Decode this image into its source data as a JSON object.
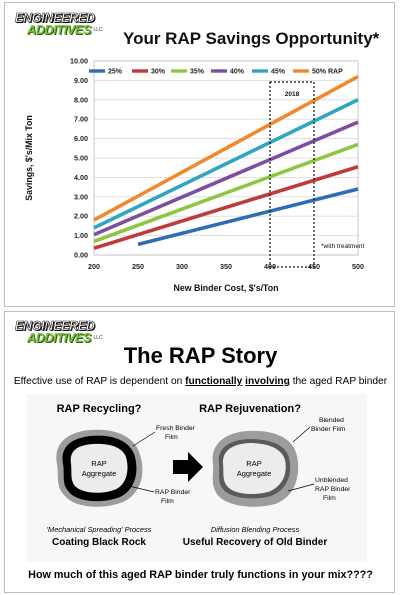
{
  "logo": {
    "line1": "ENGINEERED",
    "line2": "ADDITIVES",
    "suffix": "LLC"
  },
  "slide1": {
    "title": "Your RAP Savings Opportunity*",
    "chart_data": {
      "type": "line",
      "xlabel": "New Binder Cost, $'s/Ton",
      "ylabel": "Savings, $'s/Mix Ton",
      "xlim": [
        200,
        500
      ],
      "ylim": [
        0,
        10
      ],
      "xticks": [
        "200",
        "250",
        "300",
        "350",
        "400",
        "450",
        "500"
      ],
      "yticks": [
        "0.00",
        "1.00",
        "2.00",
        "3.00",
        "4.00",
        "5.00",
        "6.00",
        "7.00",
        "8.00",
        "9.00",
        "10.00"
      ],
      "grid": true,
      "legend_position": "top",
      "series": [
        {
          "name": "25%",
          "color": "#2e6db4",
          "x": [
            250,
            500
          ],
          "y": [
            0.55,
            3.4
          ]
        },
        {
          "name": "30%",
          "color": "#c0393b",
          "x": [
            200,
            500
          ],
          "y": [
            0.35,
            4.55
          ]
        },
        {
          "name": "35%",
          "color": "#8dc63f",
          "x": [
            200,
            500
          ],
          "y": [
            0.7,
            5.7
          ]
        },
        {
          "name": "40%",
          "color": "#7e4fa0",
          "x": [
            200,
            500
          ],
          "y": [
            1.05,
            6.85
          ]
        },
        {
          "name": "45%",
          "color": "#2fa5c0",
          "x": [
            200,
            500
          ],
          "y": [
            1.4,
            8.0
          ]
        },
        {
          "name": "50% RAP",
          "color": "#ef8a2b",
          "x": [
            200,
            500
          ],
          "y": [
            1.8,
            9.2
          ]
        }
      ],
      "annotations": [
        {
          "text": "2018",
          "type": "dotted-box",
          "x_range": [
            400,
            450
          ]
        },
        {
          "text": "*with treatment"
        }
      ]
    }
  },
  "slide2": {
    "title": "The RAP Story",
    "subtitle_parts": [
      "Effective use of RAP is dependent on ",
      "functionally",
      " ",
      "involving",
      " the aged RAP binder"
    ],
    "diagram": {
      "left_heading": "RAP Recycling?",
      "right_heading": "RAP Rejuvenation?",
      "left_aggregate_line1": "RAP",
      "left_aggregate_line2": "Aggregate",
      "right_aggregate_line1": "RAP",
      "right_aggregate_line2": "Aggregate",
      "fresh_binder_line1": "Fresh Binder",
      "fresh_binder_line2": "Film",
      "rap_binder_line1": "RAP Binder",
      "rap_binder_line2": "Film",
      "blended_line1": "Blended",
      "blended_line2": "Binder Film",
      "unblended_line1": "Unblended",
      "unblended_line2": "RAP Binder",
      "unblended_line3": "Film",
      "left_process": "'Mechanical Spreading' Process",
      "left_caption": "Coating Black Rock",
      "right_process": "Diffusion Blending Process",
      "right_caption": "Useful Recovery of Old Binder"
    },
    "question": "How much of this aged RAP binder truly functions in your mix????"
  }
}
